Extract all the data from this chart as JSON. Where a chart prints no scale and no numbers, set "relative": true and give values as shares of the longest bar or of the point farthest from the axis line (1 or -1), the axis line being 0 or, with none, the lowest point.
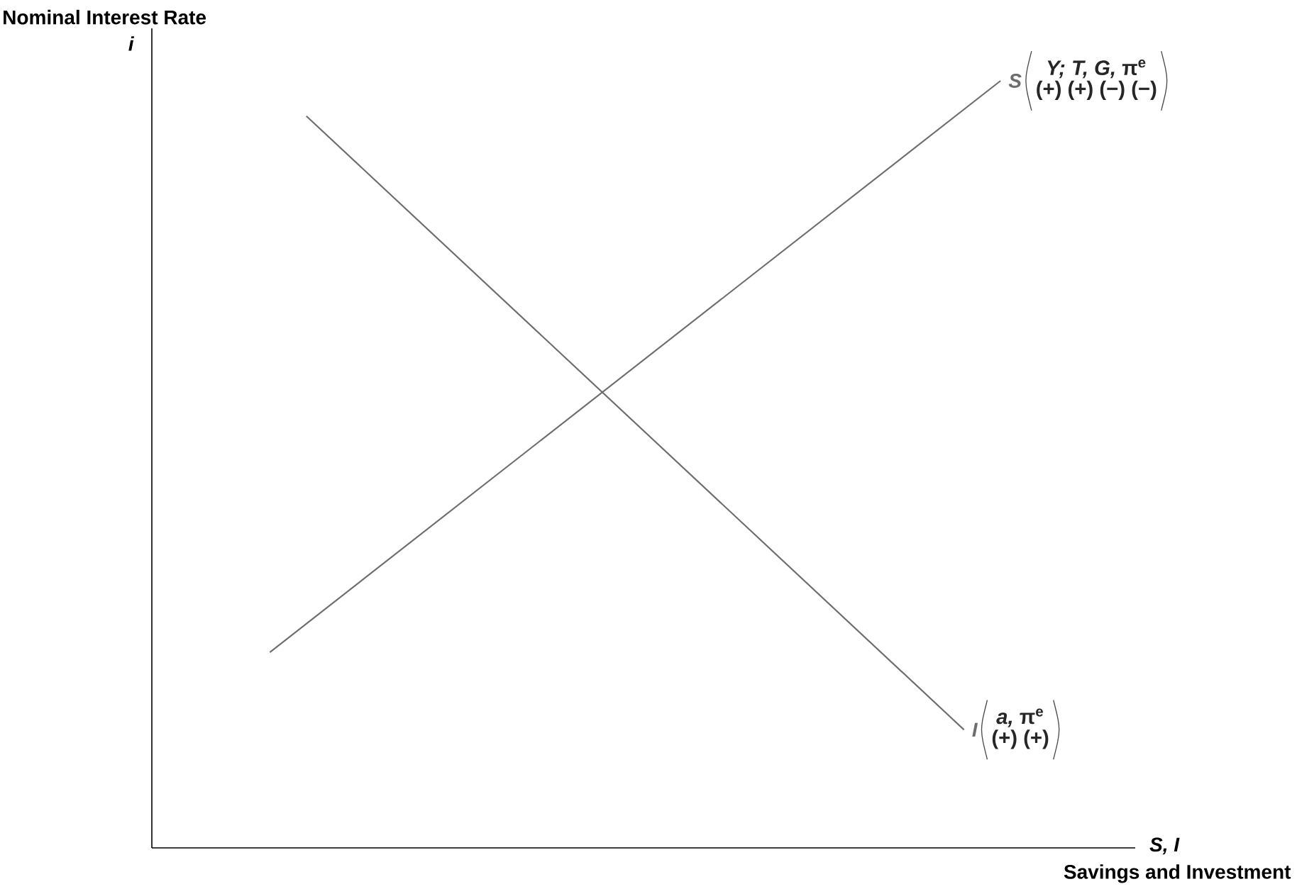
{
  "chart_data": {
    "type": "line",
    "relative": true,
    "xlabel": "Savings and Investment",
    "ylabel": "Nominal Interest Rate",
    "categories": [
      null,
      null,
      null,
      null,
      null,
      null,
      null,
      null,
      null,
      null,
      null,
      null,
      null,
      null,
      null,
      null,
      null,
      null,
      null,
      null,
      null
    ],
    "series": [
      {
        "name": "S",
        "color": "#6d6d6d",
        "values": [
          0.255,
          null,
          null,
          null,
          null,
          null,
          null,
          null,
          null,
          null,
          null,
          null,
          null,
          null,
          null,
          null,
          null,
          null,
          null,
          null,
          1
        ]
      },
      {
        "name": "I",
        "color": "#6d6d6d",
        "values": [
          null,
          0.954,
          null,
          null,
          null,
          null,
          null,
          null,
          null,
          null,
          null,
          null,
          null,
          null,
          null,
          null,
          null,
          null,
          null,
          0.154,
          null
        ]
      }
    ],
    "annotations": [
      "i",
      "S, I",
      "*Y; T,  G,* π$^{e}$",
      "(+) (+) (−) (−)",
      "*a,* π$^{e}$",
      "(+) (+)"
    ]
  }
}
